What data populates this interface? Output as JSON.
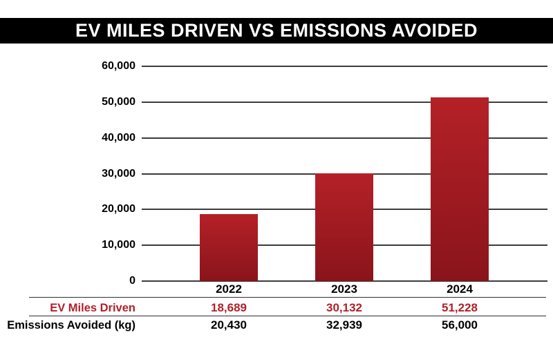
{
  "title": "EV MILES DRIVEN VS EMISSIONS AVOIDED",
  "colors": {
    "accent_red": "#b21f28",
    "bar_gradient_top": "#b42127",
    "bar_gradient_bottom": "#8a141b",
    "gridline": "#3b3b3b",
    "title_bg": "#000000",
    "title_fg": "#ffffff"
  },
  "chart_data": {
    "type": "bar",
    "title": "EV MILES DRIVEN VS EMISSIONS AVOIDED",
    "categories": [
      "2022",
      "2023",
      "2024"
    ],
    "series": [
      {
        "name": "EV Miles Driven",
        "values": [
          18689,
          30132,
          51228
        ]
      },
      {
        "name": "Emissions Avoided (kg)",
        "values": [
          20430,
          32939,
          56000
        ]
      }
    ],
    "plotted_series": "EV Miles Driven",
    "xlabel": "",
    "ylabel": "",
    "ylim": [
      0,
      60000
    ],
    "ytick_step": 10000,
    "ytick_labels": [
      "0",
      "10,000",
      "20,000",
      "30,000",
      "40,000",
      "50,000",
      "60,000"
    ],
    "grid": true,
    "legend_position": "none"
  },
  "table": {
    "column_headers": [
      "2022",
      "2023",
      "2024"
    ],
    "rows": [
      {
        "label": "EV Miles Driven",
        "values": [
          "18,689",
          "30,132",
          "51,228"
        ]
      },
      {
        "label": "Emissions Avoided (kg)",
        "values": [
          "20,430",
          "32,939",
          "56,000"
        ]
      }
    ]
  }
}
